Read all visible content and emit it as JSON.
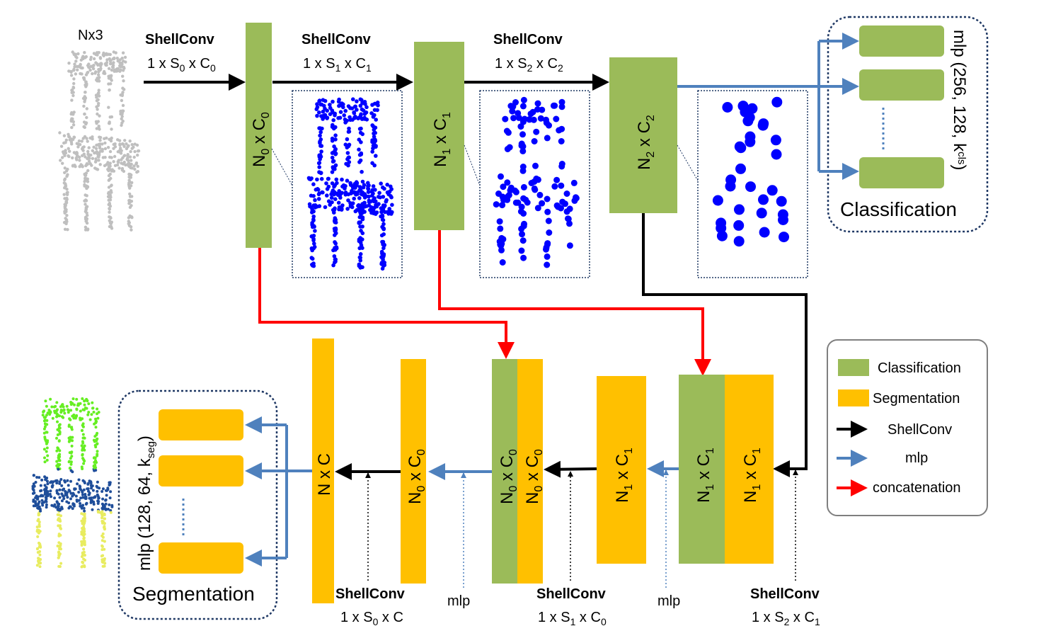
{
  "input_label": "Nx3",
  "stages": [
    {
      "title": "ShellConv",
      "size_a": "1 x S",
      "size_sub": "0",
      "size_b": " x C",
      "size_sub2": "0"
    },
    {
      "title": "ShellConv",
      "size_a": "1 x S",
      "size_sub": "1",
      "size_b": " x C",
      "size_sub2": "1"
    },
    {
      "title": "ShellConv",
      "size_a": "1 x S",
      "size_sub": "2",
      "size_b": " x C",
      "size_sub2": "2"
    }
  ],
  "enc_blocks": [
    {
      "a": "N",
      "as": "0",
      "b": " x C",
      "bs": "0"
    },
    {
      "a": "N",
      "as": "1",
      "b": " x C",
      "bs": "1"
    },
    {
      "a": "N",
      "as": "2",
      "b": " x C",
      "bs": "2"
    }
  ],
  "classification": {
    "mlp_label": "mlp (256, 128, k",
    "mlp_sub": "cls",
    "mlp_close": ")",
    "title": "Classification"
  },
  "segmentation": {
    "mlp_label": "mlp (128, 64, k",
    "mlp_sub": "seg",
    "mlp_close": ")",
    "title": "Segmentation"
  },
  "dec_blocks": [
    {
      "a": "N x C",
      "as": "",
      "b": "",
      "bs": ""
    },
    {
      "a": "N",
      "as": "0",
      "b": " x C",
      "bs": "0"
    },
    {
      "a": "N",
      "as": "0",
      "b": " x C",
      "bs": "0"
    },
    {
      "a": "N",
      "as": "0",
      "b": " x C",
      "bs": "0"
    },
    {
      "a": "N",
      "as": "1",
      "b": " x C",
      "bs": "1"
    },
    {
      "a": "N",
      "as": "1",
      "b": " x C",
      "bs": "1"
    },
    {
      "a": "N",
      "as": "1",
      "b": " x C",
      "bs": "1"
    }
  ],
  "dec_labels": [
    {
      "title": "ShellConv",
      "a": "1 x S",
      "as": "0",
      "b": " x C",
      "bs": ""
    },
    {
      "title": "mlp"
    },
    {
      "title": "ShellConv",
      "a": "1 x S",
      "as": "1",
      "b": " x C",
      "bs": "0"
    },
    {
      "title": "mlp"
    },
    {
      "title": "ShellConv",
      "a": "1 x S",
      "as": "2",
      "b": " x C",
      "bs": "1"
    }
  ],
  "legend": [
    {
      "label": "Classification",
      "color": "#9bbb59"
    },
    {
      "label": "Segmentation",
      "color": "#ffc000"
    },
    {
      "label": "ShellConv",
      "color": "#000000"
    },
    {
      "label": "mlp",
      "color": "#4f81bd"
    },
    {
      "label": "concatenation",
      "color": "#ff0000"
    }
  ],
  "colors": {
    "green": "#9bbb59",
    "yellow": "#ffc000",
    "blue_arrow": "#4f81bd",
    "red": "#ff0000",
    "points": "#0000ff"
  }
}
